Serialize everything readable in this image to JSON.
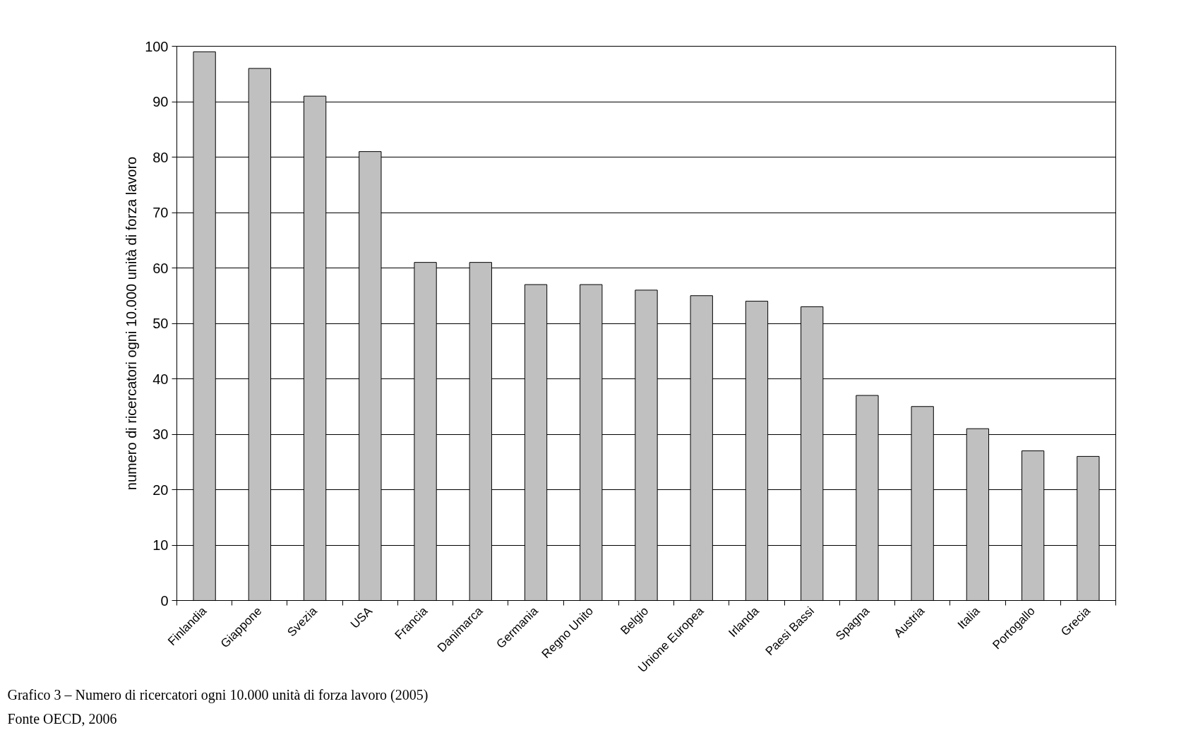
{
  "chart_data": {
    "type": "bar",
    "ylabel": "numero di ricercatori ogni 10.000 unità di forza lavoro",
    "categories": [
      "Finlandia",
      "Giappone",
      "Svezia",
      "USA",
      "Francia",
      "Danimarca",
      "Germania",
      "Regno Unito",
      "Belgio",
      "Unione Europea",
      "Irlanda",
      "Paesi Bassi",
      "Spagna",
      "Austria",
      "Italia",
      "Portogallo",
      "Grecia"
    ],
    "values": [
      99,
      96,
      91,
      81,
      61,
      61,
      57,
      57,
      56,
      55,
      54,
      53,
      37,
      35,
      31,
      27,
      26
    ],
    "color": "#c0c0c0",
    "ylim": [
      0,
      100
    ],
    "yticks": [
      0,
      10,
      20,
      30,
      40,
      50,
      60,
      70,
      80,
      90,
      100
    ],
    "grid": "y",
    "annotations": [
      "Grafico 3 – Numero di ricercatori ogni 10.000 unità di forza lavoro (2005)",
      "Fonte OECD, 2006"
    ]
  }
}
